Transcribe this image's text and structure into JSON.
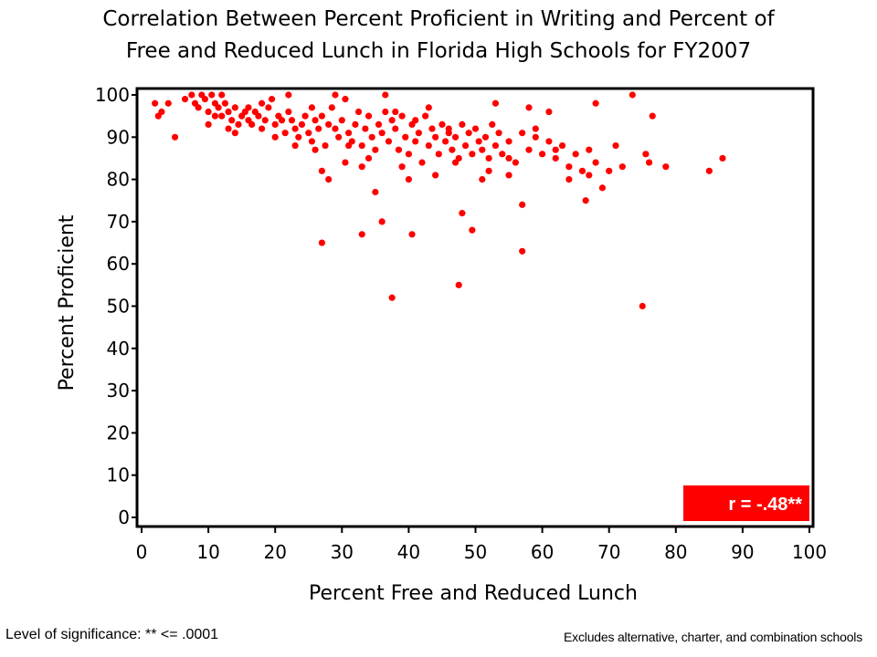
{
  "header": {
    "title_line1": "Correlation Between Percent Proficient in Writing and Percent of",
    "title_line2": "Free and Reduced Lunch in Florida High Schools for FY2007"
  },
  "footer": {
    "significance": "Level of significance: ** <= .0001",
    "note": "Excludes alternative, charter, and combination schools"
  },
  "chart_data": {
    "type": "scatter",
    "title": "Correlation Between Percent Proficient in Writing and Percent of Free and Reduced Lunch in Florida High Schools for FY2007",
    "xlabel": "Percent Free and Reduced Lunch",
    "ylabel": "Percent Proficient",
    "xlim": [
      0,
      100
    ],
    "ylim": [
      0,
      100
    ],
    "xticks": [
      0,
      10,
      20,
      30,
      40,
      50,
      60,
      70,
      80,
      90,
      100
    ],
    "yticks": [
      0,
      10,
      20,
      30,
      40,
      50,
      60,
      70,
      80,
      90,
      100
    ],
    "grid": false,
    "marker_color": "#ff0000",
    "annotation": "r = -.48**",
    "annotation_bg": "#ff0000",
    "annotation_placement": "bottom-right",
    "points": [
      [
        2,
        98
      ],
      [
        2.5,
        95
      ],
      [
        3,
        96
      ],
      [
        4,
        98
      ],
      [
        5,
        90
      ],
      [
        6.5,
        99
      ],
      [
        7.5,
        100
      ],
      [
        8,
        98
      ],
      [
        8.5,
        97
      ],
      [
        9,
        100
      ],
      [
        9.5,
        99
      ],
      [
        10,
        96
      ],
      [
        10.5,
        100
      ],
      [
        11,
        98
      ],
      [
        11.5,
        97
      ],
      [
        12,
        95
      ],
      [
        12.5,
        98
      ],
      [
        13,
        96
      ],
      [
        13.5,
        94
      ],
      [
        14,
        97
      ],
      [
        14.5,
        93
      ],
      [
        15,
        95
      ],
      [
        15.5,
        96
      ],
      [
        16,
        94
      ],
      [
        16.5,
        93
      ],
      [
        17,
        96
      ],
      [
        17.5,
        95
      ],
      [
        18,
        92
      ],
      [
        18.5,
        94
      ],
      [
        19,
        97
      ],
      [
        19.5,
        99
      ],
      [
        20,
        93
      ],
      [
        20.5,
        95
      ],
      [
        21,
        94
      ],
      [
        21.5,
        91
      ],
      [
        22,
        96
      ],
      [
        22.5,
        94
      ],
      [
        23,
        92
      ],
      [
        23.5,
        90
      ],
      [
        24,
        93
      ],
      [
        24.5,
        95
      ],
      [
        25,
        91
      ],
      [
        25.5,
        89
      ],
      [
        26,
        94
      ],
      [
        26.5,
        92
      ],
      [
        27,
        95
      ],
      [
        27.5,
        88
      ],
      [
        28,
        93
      ],
      [
        28.5,
        97
      ],
      [
        29,
        92
      ],
      [
        29.5,
        90
      ],
      [
        30,
        94
      ],
      [
        30.5,
        99
      ],
      [
        31,
        91
      ],
      [
        31.5,
        89
      ],
      [
        32,
        93
      ],
      [
        32.5,
        96
      ],
      [
        33,
        88
      ],
      [
        33.5,
        92
      ],
      [
        34,
        95
      ],
      [
        34.5,
        90
      ],
      [
        35,
        87
      ],
      [
        35.5,
        93
      ],
      [
        36,
        91
      ],
      [
        36.5,
        96
      ],
      [
        37,
        89
      ],
      [
        37.5,
        94
      ],
      [
        38,
        92
      ],
      [
        38.5,
        87
      ],
      [
        39,
        95
      ],
      [
        39.5,
        90
      ],
      [
        40,
        86
      ],
      [
        40.5,
        93
      ],
      [
        41,
        89
      ],
      [
        41.5,
        91
      ],
      [
        42,
        84
      ],
      [
        42.5,
        95
      ],
      [
        43,
        88
      ],
      [
        43.5,
        92
      ],
      [
        44,
        90
      ],
      [
        44.5,
        86
      ],
      [
        45,
        93
      ],
      [
        45.5,
        89
      ],
      [
        46,
        92
      ],
      [
        46.5,
        87
      ],
      [
        47,
        90
      ],
      [
        47.5,
        85
      ],
      [
        48,
        93
      ],
      [
        48.5,
        88
      ],
      [
        49,
        91
      ],
      [
        49.5,
        86
      ],
      [
        50,
        92
      ],
      [
        50.5,
        89
      ],
      [
        51,
        87
      ],
      [
        51.5,
        90
      ],
      [
        52,
        85
      ],
      [
        52.5,
        93
      ],
      [
        53,
        88
      ],
      [
        53.5,
        91
      ],
      [
        54,
        86
      ],
      [
        55,
        89
      ],
      [
        56,
        84
      ],
      [
        57,
        91
      ],
      [
        58,
        87
      ],
      [
        59,
        92
      ],
      [
        60,
        86
      ],
      [
        61,
        89
      ],
      [
        62,
        85
      ],
      [
        63,
        88
      ],
      [
        64,
        83
      ],
      [
        65,
        86
      ],
      [
        66,
        82
      ],
      [
        67,
        87
      ],
      [
        68,
        84
      ],
      [
        69,
        78
      ],
      [
        70,
        82
      ],
      [
        71,
        88
      ],
      [
        72,
        83
      ],
      [
        27,
        82
      ],
      [
        28,
        80
      ],
      [
        30.5,
        84
      ],
      [
        33,
        83
      ],
      [
        35,
        77
      ],
      [
        36,
        70
      ],
      [
        33,
        67
      ],
      [
        27,
        65
      ],
      [
        40.5,
        67
      ],
      [
        37.5,
        52
      ],
      [
        47.5,
        55
      ],
      [
        48,
        72
      ],
      [
        49.5,
        68
      ],
      [
        51,
        80
      ],
      [
        55,
        81
      ],
      [
        57,
        74
      ],
      [
        57,
        63
      ],
      [
        66.5,
        75
      ],
      [
        67,
        81
      ],
      [
        68,
        98
      ],
      [
        73.5,
        100
      ],
      [
        75,
        50
      ],
      [
        75.5,
        86
      ],
      [
        76,
        84
      ],
      [
        76.5,
        95
      ],
      [
        78.5,
        83
      ],
      [
        85,
        82
      ],
      [
        87,
        85
      ],
      [
        64,
        80
      ],
      [
        62,
        87
      ],
      [
        59,
        90
      ],
      [
        61,
        96
      ],
      [
        58,
        97
      ],
      [
        55,
        85
      ],
      [
        53,
        98
      ],
      [
        46,
        91
      ],
      [
        41,
        94
      ],
      [
        38,
        96
      ],
      [
        43,
        97
      ],
      [
        36.5,
        100
      ],
      [
        29,
        100
      ],
      [
        25.5,
        97
      ],
      [
        22,
        100
      ],
      [
        16,
        97
      ],
      [
        12,
        100
      ],
      [
        14,
        91
      ],
      [
        18,
        98
      ],
      [
        10,
        93
      ],
      [
        11,
        95
      ],
      [
        31,
        88
      ],
      [
        44,
        81
      ],
      [
        40,
        80
      ],
      [
        52,
        82
      ],
      [
        47,
        84
      ],
      [
        39,
        83
      ],
      [
        34,
        85
      ],
      [
        26,
        87
      ],
      [
        23,
        88
      ],
      [
        20,
        90
      ],
      [
        13,
        92
      ]
    ]
  }
}
